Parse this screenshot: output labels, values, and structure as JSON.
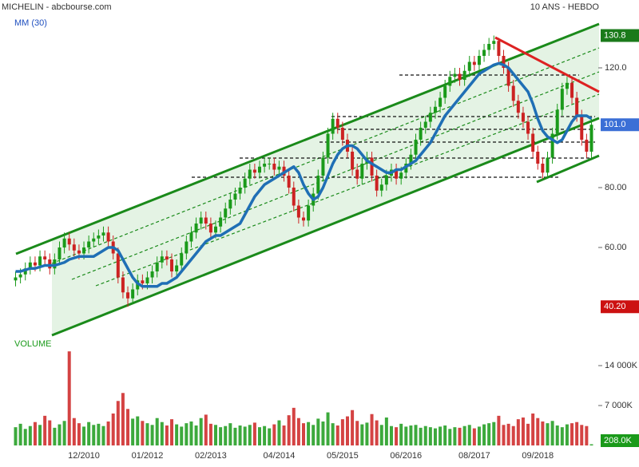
{
  "chart_data": {
    "type": "candlestick",
    "title": "MICHELIN - abcbourse.com",
    "subtitle": "10 ANS - HEBDO",
    "up_color": "#1a9a1a",
    "down_color": "#cc2222",
    "categories": [
      null,
      null,
      null,
      null,
      null,
      null,
      null,
      null,
      null,
      null,
      null,
      null,
      null,
      null,
      "12/2010",
      null,
      null,
      null,
      null,
      null,
      null,
      null,
      null,
      null,
      null,
      null,
      null,
      "01/2012",
      null,
      null,
      null,
      null,
      null,
      null,
      null,
      null,
      null,
      null,
      null,
      null,
      "02/2013",
      null,
      null,
      null,
      null,
      null,
      null,
      null,
      null,
      null,
      null,
      null,
      null,
      null,
      "04/2014",
      null,
      null,
      null,
      null,
      null,
      null,
      null,
      null,
      null,
      null,
      null,
      null,
      "05/2015",
      null,
      null,
      null,
      null,
      null,
      null,
      null,
      null,
      null,
      null,
      null,
      null,
      "06/2016",
      null,
      null,
      null,
      null,
      null,
      null,
      null,
      null,
      null,
      null,
      null,
      null,
      null,
      "08/2017",
      null,
      null,
      null,
      null,
      null,
      null,
      null,
      null,
      null,
      null,
      null,
      null,
      "09/2018",
      null,
      null,
      null,
      null,
      null,
      null,
      null,
      null,
      null,
      null,
      null
    ],
    "candles": [
      [
        49,
        52,
        47,
        50
      ],
      [
        50,
        53,
        48,
        51
      ],
      [
        51,
        55,
        49,
        53
      ],
      [
        53,
        57,
        51,
        55
      ],
      [
        55,
        57,
        52,
        54
      ],
      [
        54,
        59,
        52,
        57
      ],
      [
        57,
        59,
        54,
        56
      ],
      [
        56,
        58,
        51,
        53
      ],
      [
        53,
        58,
        51,
        56
      ],
      [
        56,
        62,
        54,
        60
      ],
      [
        60,
        65,
        58,
        63
      ],
      [
        63,
        65,
        59,
        61
      ],
      [
        61,
        63,
        57,
        59
      ],
      [
        59,
        61,
        56,
        58
      ],
      [
        58,
        62,
        56,
        60
      ],
      [
        60,
        64,
        58,
        62
      ],
      [
        62,
        65,
        60,
        63
      ],
      [
        63,
        66,
        61,
        64
      ],
      [
        64,
        67,
        62,
        65
      ],
      [
        65,
        67,
        60,
        62
      ],
      [
        62,
        64,
        56,
        58
      ],
      [
        58,
        60,
        48,
        50
      ],
      [
        50,
        52,
        43,
        45
      ],
      [
        45,
        47,
        40.2,
        43
      ],
      [
        43,
        48,
        41,
        46
      ],
      [
        46,
        51,
        44,
        49
      ],
      [
        49,
        51,
        46,
        48
      ],
      [
        48,
        52,
        46,
        50
      ],
      [
        50,
        54,
        48,
        52
      ],
      [
        52,
        57,
        50,
        55
      ],
      [
        55,
        59,
        53,
        57
      ],
      [
        57,
        59,
        54,
        56
      ],
      [
        56,
        58,
        50,
        52
      ],
      [
        52,
        56,
        50,
        54
      ],
      [
        54,
        60,
        52,
        58
      ],
      [
        58,
        64,
        56,
        62
      ],
      [
        62,
        67,
        60,
        65
      ],
      [
        65,
        70,
        63,
        68
      ],
      [
        68,
        72,
        66,
        70
      ],
      [
        70,
        72,
        66,
        68
      ],
      [
        68,
        70,
        63,
        65
      ],
      [
        65,
        69,
        63,
        67
      ],
      [
        67,
        72,
        65,
        70
      ],
      [
        70,
        75,
        68,
        73
      ],
      [
        73,
        78,
        71,
        76
      ],
      [
        76,
        80,
        74,
        78
      ],
      [
        78,
        82,
        76,
        80
      ],
      [
        80,
        85,
        78,
        83
      ],
      [
        83,
        88,
        81,
        86
      ],
      [
        86,
        88,
        83,
        85
      ],
      [
        85,
        89,
        83,
        87
      ],
      [
        87,
        90,
        85,
        88
      ],
      [
        88,
        90,
        86,
        88
      ],
      [
        88,
        90,
        84,
        86
      ],
      [
        86,
        89,
        84,
        87
      ],
      [
        87,
        89,
        82,
        84
      ],
      [
        84,
        86,
        78,
        80
      ],
      [
        80,
        82,
        72,
        74
      ],
      [
        74,
        76,
        68,
        70
      ],
      [
        70,
        72,
        67,
        69
      ],
      [
        69,
        76,
        67,
        74
      ],
      [
        74,
        80,
        72,
        78
      ],
      [
        78,
        86,
        76,
        84
      ],
      [
        84,
        92,
        82,
        90
      ],
      [
        90,
        100,
        88,
        98
      ],
      [
        98,
        105,
        96,
        103
      ],
      [
        103,
        105,
        98,
        100
      ],
      [
        100,
        102,
        94,
        96
      ],
      [
        96,
        98,
        90,
        92
      ],
      [
        92,
        94,
        84,
        86
      ],
      [
        86,
        88,
        81,
        83
      ],
      [
        83,
        90,
        81,
        88
      ],
      [
        88,
        92,
        86,
        90
      ],
      [
        90,
        92,
        82,
        84
      ],
      [
        84,
        86,
        77,
        79
      ],
      [
        79,
        83,
        77,
        81
      ],
      [
        81,
        86,
        79,
        84
      ],
      [
        84,
        88,
        82,
        86
      ],
      [
        86,
        88,
        81,
        83
      ],
      [
        83,
        87,
        81,
        85
      ],
      [
        85,
        90,
        83,
        88
      ],
      [
        88,
        93,
        86,
        91
      ],
      [
        91,
        98,
        89,
        96
      ],
      [
        96,
        102,
        94,
        100
      ],
      [
        100,
        104,
        98,
        102
      ],
      [
        102,
        107,
        100,
        105
      ],
      [
        105,
        109,
        103,
        107
      ],
      [
        107,
        112,
        105,
        110
      ],
      [
        110,
        116,
        108,
        114
      ],
      [
        114,
        119,
        112,
        117
      ],
      [
        117,
        120,
        115,
        118
      ],
      [
        118,
        120,
        114,
        116
      ],
      [
        116,
        121,
        114,
        119
      ],
      [
        119,
        124,
        117,
        122
      ],
      [
        122,
        124,
        119,
        121
      ],
      [
        121,
        126,
        119,
        124
      ],
      [
        124,
        128,
        122,
        126
      ],
      [
        126,
        130,
        124,
        128
      ],
      [
        128,
        130.8,
        126,
        129
      ],
      [
        129,
        130,
        122,
        124
      ],
      [
        124,
        126,
        118,
        120
      ],
      [
        120,
        122,
        112,
        114
      ],
      [
        114,
        116,
        107,
        109
      ],
      [
        109,
        111,
        103,
        105
      ],
      [
        105,
        107,
        100,
        102
      ],
      [
        102,
        104,
        96,
        98
      ],
      [
        98,
        100,
        90,
        92
      ],
      [
        92,
        94,
        86,
        88
      ],
      [
        88,
        90,
        83,
        85
      ],
      [
        85,
        92,
        83,
        90
      ],
      [
        90,
        100,
        88,
        98
      ],
      [
        98,
        108,
        96,
        106
      ],
      [
        106,
        115,
        104,
        113
      ],
      [
        113,
        117,
        111,
        115
      ],
      [
        115,
        117,
        108,
        110
      ],
      [
        110,
        112,
        102,
        104
      ],
      [
        104,
        106,
        94,
        96
      ],
      [
        96,
        98,
        90,
        92
      ],
      [
        92,
        103,
        90,
        101
      ]
    ],
    "ylim": [
      30.67,
      142.67
    ],
    "yticks": [
      {
        "value": 60,
        "label": "60.00"
      },
      {
        "value": 80,
        "label": "80.00"
      },
      {
        "value": 120,
        "label": "120.0"
      }
    ],
    "series": [
      {
        "name": "MM (30)",
        "color": "#1f6fb5",
        "values": [
          52,
          52,
          52.5,
          53,
          53,
          53.5,
          54,
          54,
          54,
          54.5,
          55,
          56,
          56.5,
          57,
          57,
          57,
          57,
          58,
          59,
          60,
          60,
          59,
          56,
          53,
          50,
          48,
          47,
          47,
          47,
          47,
          48,
          48,
          49,
          50,
          52,
          54,
          56,
          58,
          60,
          62,
          63,
          64,
          64,
          65,
          66,
          67,
          68,
          71,
          74,
          77,
          79,
          81,
          82,
          83,
          84,
          85,
          86,
          87,
          85,
          81,
          78,
          76,
          77,
          80,
          84,
          88,
          91,
          93,
          94,
          94,
          93,
          91,
          89,
          88,
          87,
          86,
          85,
          85,
          86,
          86,
          87,
          88,
          89,
          91,
          93,
          95,
          98,
          101,
          104,
          106,
          108,
          110,
          112,
          114,
          116,
          118,
          119,
          120,
          121,
          121.5,
          121,
          120,
          118,
          116,
          114,
          112,
          108,
          103,
          99,
          97,
          96,
          95,
          96,
          99,
          102,
          104,
          104,
          104,
          103
        ]
      }
    ],
    "price_markers": [
      {
        "value": 130.8,
        "label": "130.8",
        "color": "#1a7a1a"
      },
      {
        "value": 101,
        "label": "101.0",
        "color": "#3b6fd6"
      },
      {
        "value": 40.2,
        "label": "40.20",
        "color": "#cc1111"
      }
    ],
    "volume": {
      "title": "VOLUME",
      "ylim": [
        0,
        16800
      ],
      "yticks": [
        {
          "value": 7000,
          "label": "7 000K"
        },
        {
          "value": 14000,
          "label": "14 000K"
        }
      ],
      "marker": {
        "value": 208,
        "label": "208.0K",
        "color": "#1a9a1a"
      },
      "values": [
        3200,
        3800,
        2900,
        3400,
        4100,
        3600,
        5200,
        4400,
        3100,
        3700,
        4300,
        16500,
        4800,
        3900,
        3300,
        4100,
        3600,
        3800,
        3400,
        4200,
        5600,
        7800,
        9200,
        6400,
        4700,
        5100,
        4300,
        3900,
        3600,
        4800,
        4100,
        3500,
        4600,
        3700,
        3300,
        3900,
        4200,
        3500,
        4800,
        5400,
        3800,
        3600,
        3200,
        3400,
        3900,
        3100,
        3500,
        3300,
        3600,
        4000,
        3200,
        3400,
        3000,
        3700,
        4400,
        3500,
        5300,
        6600,
        4800,
        3900,
        4100,
        3600,
        4700,
        4200,
        5800,
        3900,
        3500,
        4600,
        5100,
        6200,
        4300,
        3700,
        4000,
        5500,
        4400,
        3600,
        4900,
        3400,
        3200,
        3800,
        3300,
        3500,
        3600,
        3100,
        3400,
        3200,
        3000,
        3300,
        3500,
        2900,
        3200,
        3100,
        3400,
        3600,
        3000,
        3300,
        3700,
        3900,
        4100,
        5200,
        3600,
        3800,
        3400,
        4600,
        4900,
        3800,
        5600,
        4800,
        4200,
        3900,
        4300,
        3500,
        3200,
        3700,
        3900,
        4100,
        3600,
        3400,
        208
      ]
    }
  }
}
